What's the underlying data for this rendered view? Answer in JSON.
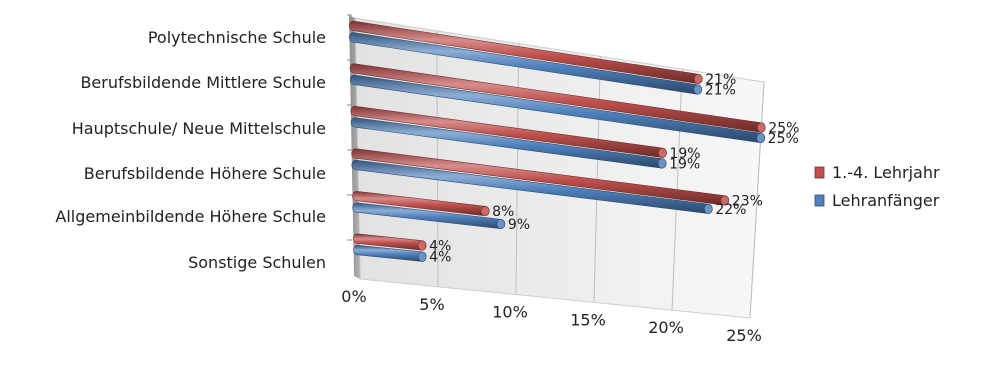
{
  "chart_data": {
    "type": "bar",
    "orientation": "horizontal",
    "style": "3d-cylinder",
    "title": "",
    "xlabel": "",
    "ylabel": "",
    "categories": [
      "Polytechnische Schule",
      "Berufsbildende Mittlere Schule",
      "Hauptschule/ Neue Mittelschule",
      "Berufsbildende Höhere Schule",
      "Allgemeinbildende Höhere Schule",
      "Sonstige Schulen"
    ],
    "series": [
      {
        "name": "1.-4. Lehrjahr",
        "color": "#c0504d",
        "values": [
          21,
          25,
          19,
          23,
          8,
          4
        ],
        "labels": [
          "21%",
          "25%",
          "19%",
          "23%",
          "8%",
          "4%"
        ]
      },
      {
        "name": "Lehranfänger",
        "color": "#4f81bd",
        "values": [
          21,
          25,
          19,
          22,
          9,
          4
        ],
        "labels": [
          "21%",
          "25%",
          "19%",
          "22%",
          "9%",
          "4%"
        ]
      }
    ],
    "xlim": [
      0,
      25
    ],
    "xticks": [
      0,
      5,
      10,
      15,
      20,
      25
    ],
    "xtick_labels": [
      "0%",
      "5%",
      "10%",
      "15%",
      "20%",
      "25%"
    ],
    "grid": true,
    "legend_position": "right"
  }
}
